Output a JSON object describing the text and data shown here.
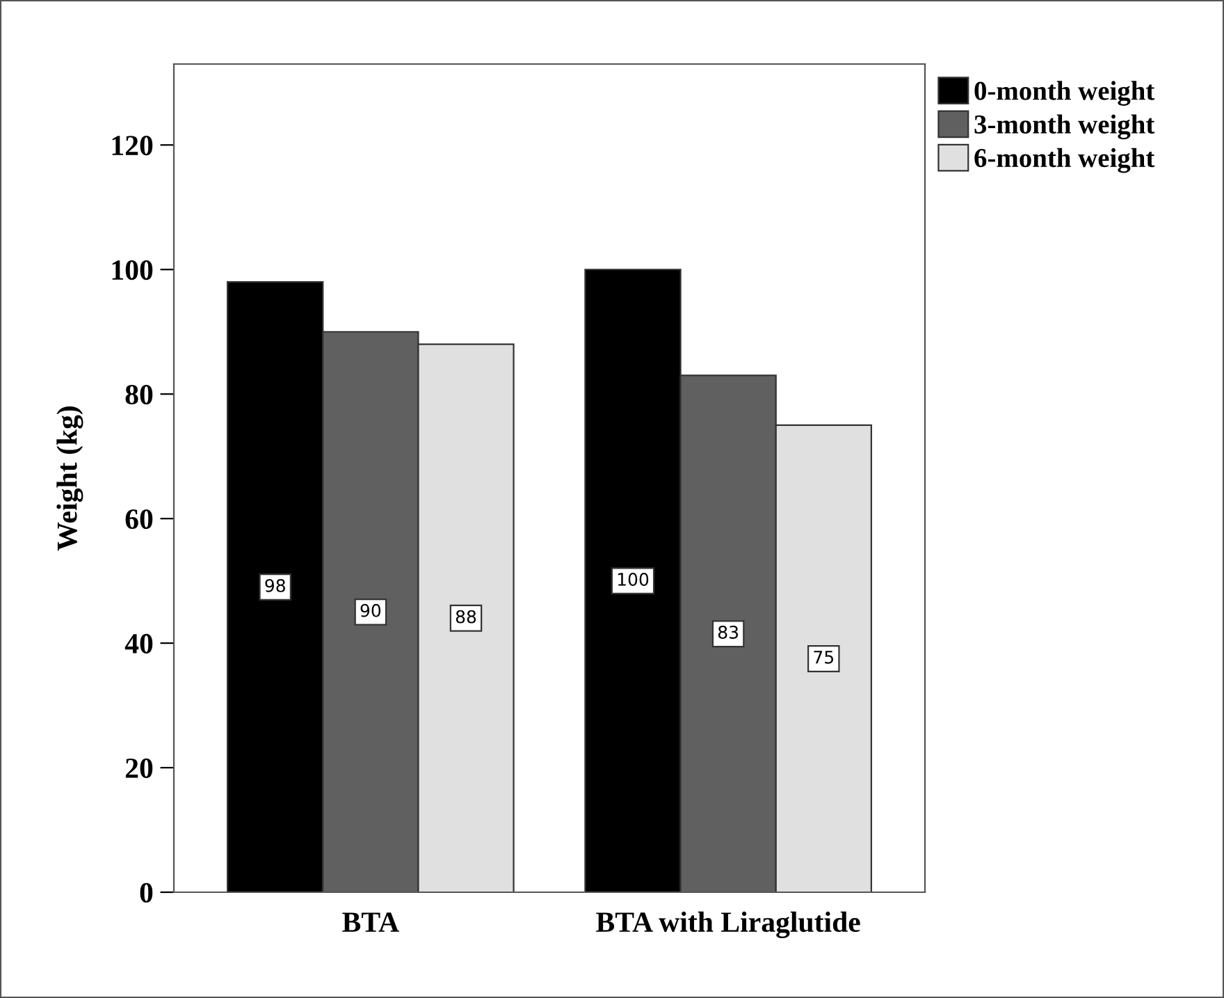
{
  "chart_data": {
    "type": "bar",
    "ylabel": "Weight (kg)",
    "categories": [
      "BTA",
      "BTA with Liraglutide"
    ],
    "series": [
      {
        "name": "0-month weight",
        "color": "#000000",
        "values": [
          98,
          100
        ]
      },
      {
        "name": "3-month weight",
        "color": "#606060",
        "values": [
          90,
          83
        ]
      },
      {
        "name": "6-month weight",
        "color": "#e0e0e0",
        "values": [
          88,
          75
        ]
      }
    ],
    "ylim": [
      0,
      133
    ],
    "yticks": [
      0,
      20,
      40,
      60,
      80,
      100,
      120
    ],
    "grid": false,
    "legend": "top right",
    "data_labels": true
  }
}
